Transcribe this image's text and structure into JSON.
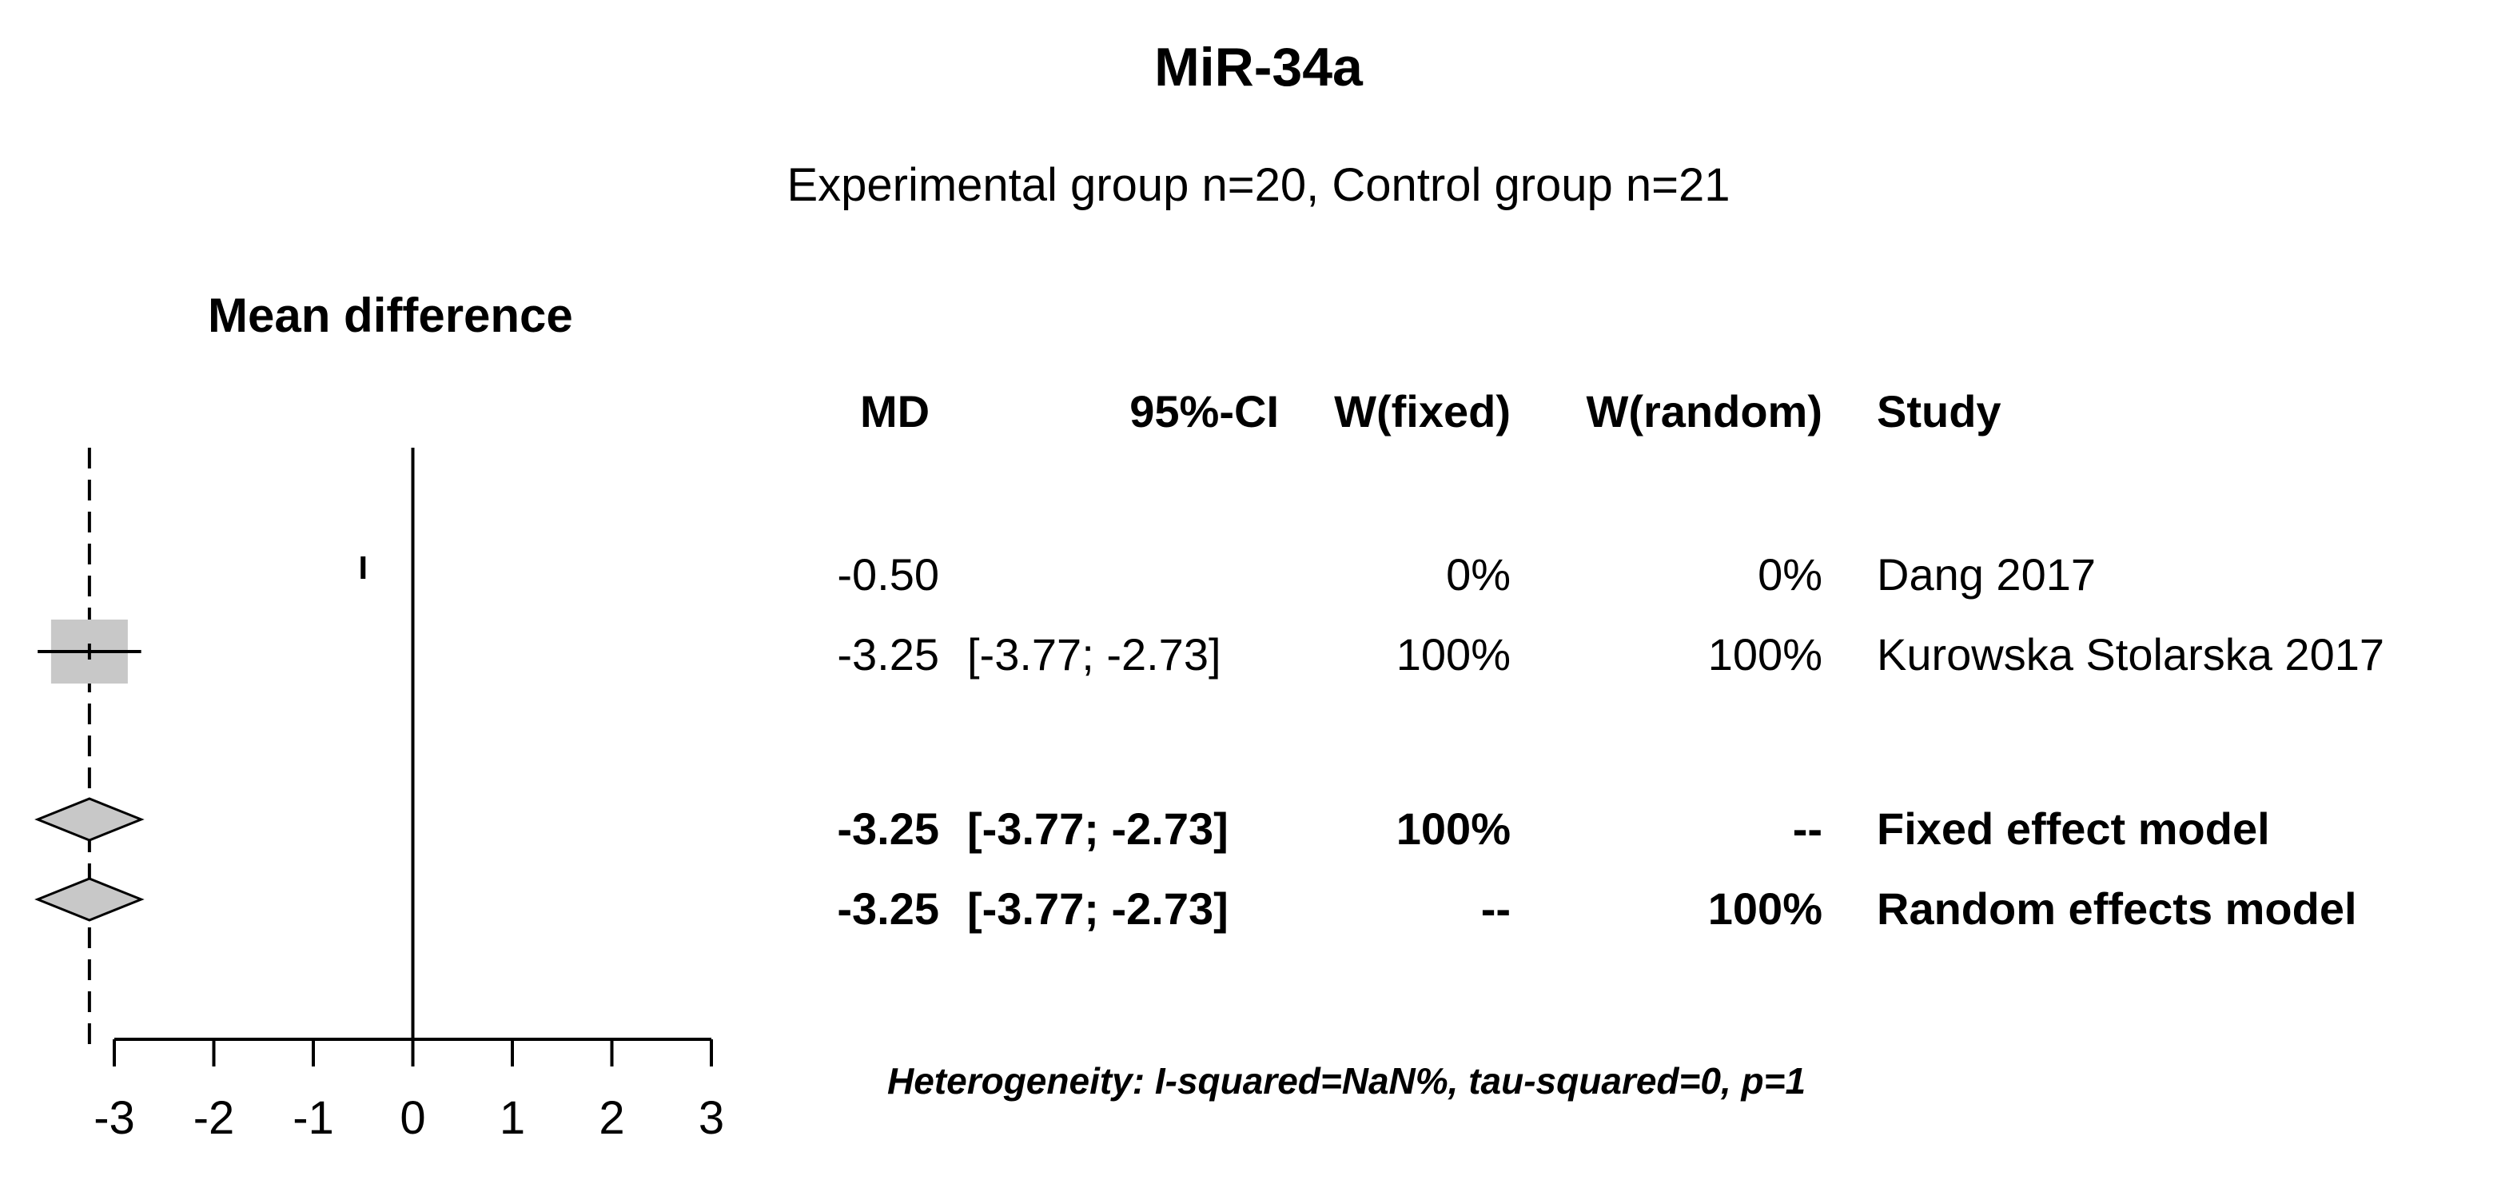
{
  "chart_data": {
    "type": "forest",
    "title": "MiR-34a",
    "subtitle": "Experimental group n=20, Control group n=21",
    "xlabel": "Mean difference",
    "xlim": [
      -3,
      3
    ],
    "xticks": [
      "-3",
      "-2",
      "-1",
      "0",
      "1",
      "2",
      "3"
    ],
    "null_line": 0,
    "summary_line": -3.25,
    "columns": [
      "MD",
      "95%-CI",
      "W(fixed)",
      "W(random)",
      "Study"
    ],
    "studies": [
      {
        "study": "Dang 2017",
        "md": -0.5,
        "md_text": "-0.50",
        "ci_text": "",
        "w_fixed": "0%",
        "w_random": "0%"
      },
      {
        "study": "Kurowska Stolarska 2017",
        "md": -3.25,
        "lower": -3.77,
        "upper": -2.73,
        "md_text": "-3.25",
        "ci_text": "[-3.77; -2.73]",
        "w_fixed": "100%",
        "w_random": "100%"
      }
    ],
    "summaries": [
      {
        "model": "Fixed effect model",
        "md": -3.25,
        "lower": -3.77,
        "upper": -2.73,
        "md_text": "-3.25",
        "ci_text": "[-3.77; -2.73]",
        "w_fixed": "100%",
        "w_random": "--"
      },
      {
        "model": "Random effects model",
        "md": -3.25,
        "lower": -3.77,
        "upper": -2.73,
        "md_text": "-3.25",
        "ci_text": "[-3.77; -2.73]",
        "w_fixed": "--",
        "w_random": "100%"
      }
    ],
    "heterogeneity": "Heterogeneity: I-squared=NaN%, tau-squared=0, p=1",
    "colors": {
      "box": "#c8c8c8",
      "diamond": "#c8c8c8",
      "line": "#000000"
    }
  }
}
